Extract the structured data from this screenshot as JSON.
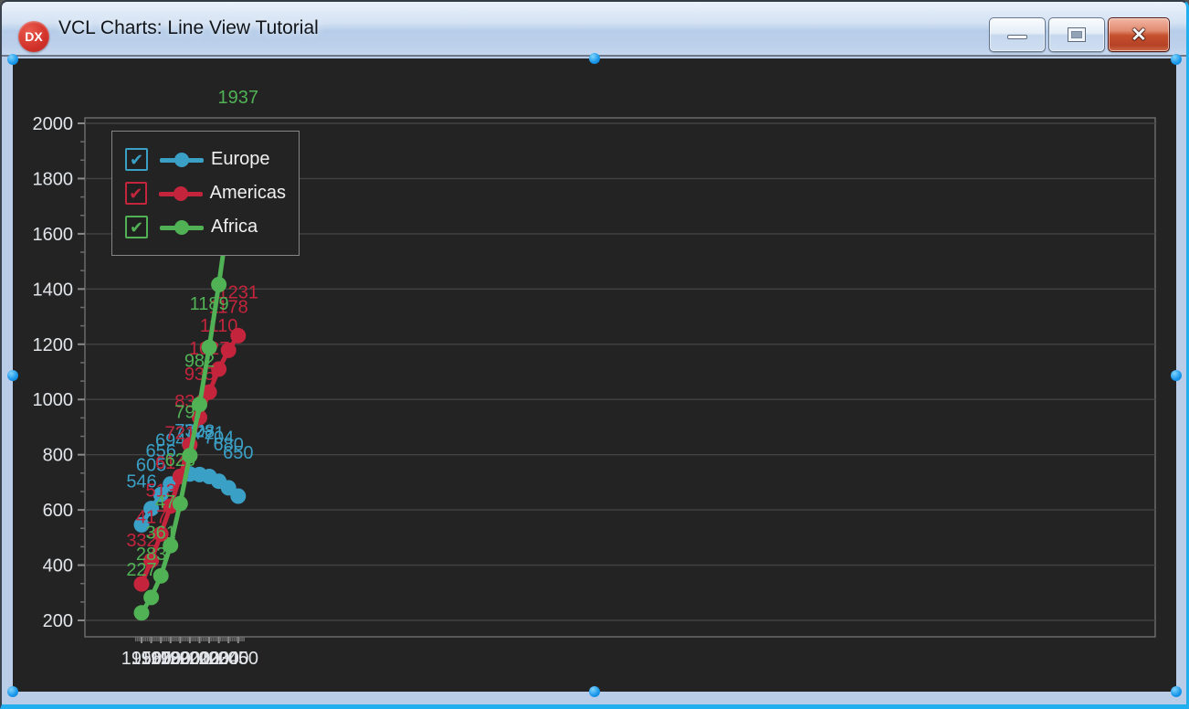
{
  "window": {
    "title": "VCL Charts: Line View Tutorial",
    "icon_label": "DX",
    "controls": {
      "minimize": "minimize",
      "maximize": "maximize",
      "close": "close",
      "close_glyph": "x"
    }
  },
  "legend": {
    "items": [
      {
        "label": "Europe",
        "checked": true
      },
      {
        "label": "Americas",
        "checked": true
      },
      {
        "label": "Africa",
        "checked": true
      }
    ],
    "checkmark_glyph": "✔"
  },
  "chart_data": {
    "type": "line",
    "title": "",
    "x": [
      1950,
      1960,
      1970,
      1980,
      1990,
      2000,
      2010,
      2020,
      2030,
      2040,
      2050
    ],
    "series": [
      {
        "name": "Europe",
        "color": "#3AA0C6",
        "values": [
          546,
          605,
          656,
          694,
          721,
          730,
          728,
          721,
          704,
          680,
          650
        ]
      },
      {
        "name": "Americas",
        "color": "#C4243C",
        "values": [
          332,
          417,
          513,
          614,
          721,
          836,
          935,
          1027,
          1110,
          1178,
          1231
        ]
      },
      {
        "name": "Africa",
        "color": "#50B255",
        "values": [
          227,
          283,
          361,
          471,
          623,
          797,
          982,
          1189,
          1416,
          1665,
          1937
        ]
      }
    ],
    "y_ticks": [
      200,
      400,
      600,
      800,
      1000,
      1200,
      1400,
      1600,
      1800,
      2000
    ],
    "x_ticks": [
      1950,
      1960,
      1970,
      1980,
      1990,
      2000,
      2010,
      2020,
      2030,
      2040,
      2050
    ],
    "ylim": [
      200,
      2000
    ],
    "grid": "horizontal",
    "point_labels": true,
    "legend_position": "top-left"
  },
  "theme": {
    "panel_bg": "#232323",
    "form_bg": "#B9CDE9",
    "accent_cyan": "#22AFF0",
    "grid_color": "#434343",
    "axis_color": "#6f6f6f",
    "tick_mark_color": "#8a8a8a",
    "tick_label_color": "#E2E6EA",
    "titlebar_text": "#11151A",
    "close_button_red": "#C5512F",
    "app_icon_red": "#D1322A"
  }
}
